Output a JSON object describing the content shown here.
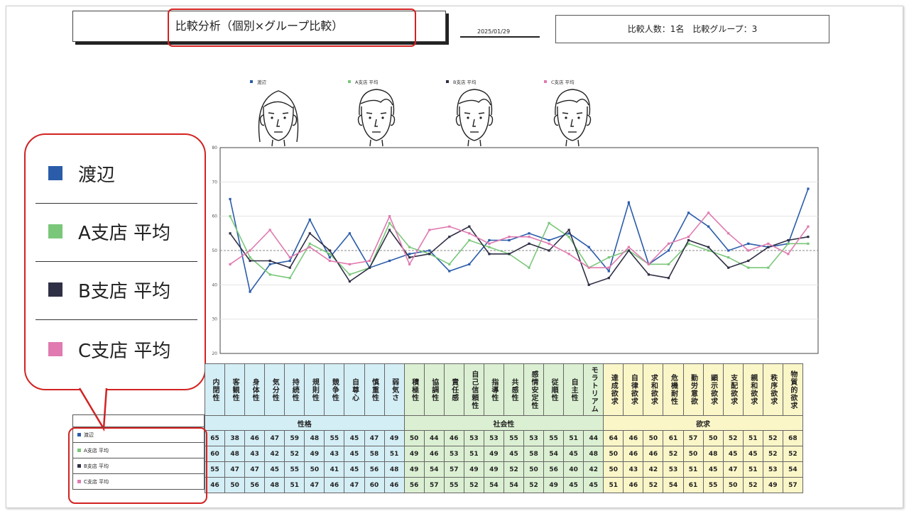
{
  "header": {
    "title": "比較分析（個別×グループ比較）",
    "date": "2025/01/29",
    "info": "比較人数：1名　比較グループ：3"
  },
  "legend": [
    {
      "name": "渡辺",
      "color": "#2a5caa"
    },
    {
      "name": "A支店 平均",
      "color": "#7ac77a"
    },
    {
      "name": "B支店 平均",
      "color": "#2f2f45"
    },
    {
      "name": "C支店 平均",
      "color": "#e07ab0"
    }
  ],
  "chart_data": {
    "type": "line",
    "ylim": [
      20,
      80
    ],
    "yticks": [
      20,
      30,
      40,
      50,
      60,
      70,
      80
    ],
    "reference_line": 50,
    "categories": [
      "内閉性",
      "客観性",
      "身体性",
      "気分性",
      "持続性",
      "規則性",
      "競争性",
      "自尊心",
      "慎重性",
      "弱気さ",
      "積極性",
      "協調性",
      "責任感",
      "自己信頼性",
      "指導性",
      "共感性",
      "感情安定性",
      "従順性",
      "自主性",
      "モラトリアム",
      "達成欲求",
      "自律欲求",
      "求和欲求",
      "危機耐性",
      "勤労意欲",
      "顕示欲求",
      "支配欲求",
      "親和欲求",
      "秩序欲求",
      "物質的欲求"
    ],
    "groups": [
      {
        "name": "性格",
        "span": 10
      },
      {
        "name": "社会性",
        "span": 10
      },
      {
        "name": "欲求",
        "span": 10
      }
    ],
    "series": [
      {
        "name": "渡辺",
        "color": "#2a5caa",
        "values": [
          65,
          38,
          46,
          47,
          59,
          48,
          55,
          45,
          47,
          49,
          50,
          44,
          46,
          53,
          53,
          55,
          53,
          55,
          51,
          44,
          64,
          46,
          50,
          61,
          57,
          50,
          52,
          51,
          52,
          68
        ]
      },
      {
        "name": "A支店 平均",
        "color": "#7ac77a",
        "values": [
          60,
          48,
          43,
          42,
          52,
          49,
          43,
          45,
          58,
          51,
          49,
          46,
          53,
          51,
          49,
          45,
          58,
          54,
          45,
          48,
          50,
          46,
          46,
          52,
          50,
          48,
          45,
          45,
          52,
          52
        ]
      },
      {
        "name": "B支店 平均",
        "color": "#2f2f45",
        "values": [
          55,
          47,
          47,
          45,
          55,
          50,
          41,
          45,
          56,
          48,
          49,
          54,
          57,
          49,
          49,
          52,
          50,
          56,
          40,
          42,
          50,
          43,
          42,
          53,
          51,
          45,
          47,
          51,
          53,
          54
        ]
      },
      {
        "name": "C支店 平均",
        "color": "#e07ab0",
        "values": [
          46,
          50,
          56,
          48,
          51,
          47,
          46,
          47,
          60,
          46,
          56,
          57,
          55,
          52,
          54,
          54,
          52,
          49,
          45,
          45,
          51,
          46,
          52,
          54,
          61,
          55,
          50,
          52,
          49,
          57
        ]
      }
    ]
  }
}
